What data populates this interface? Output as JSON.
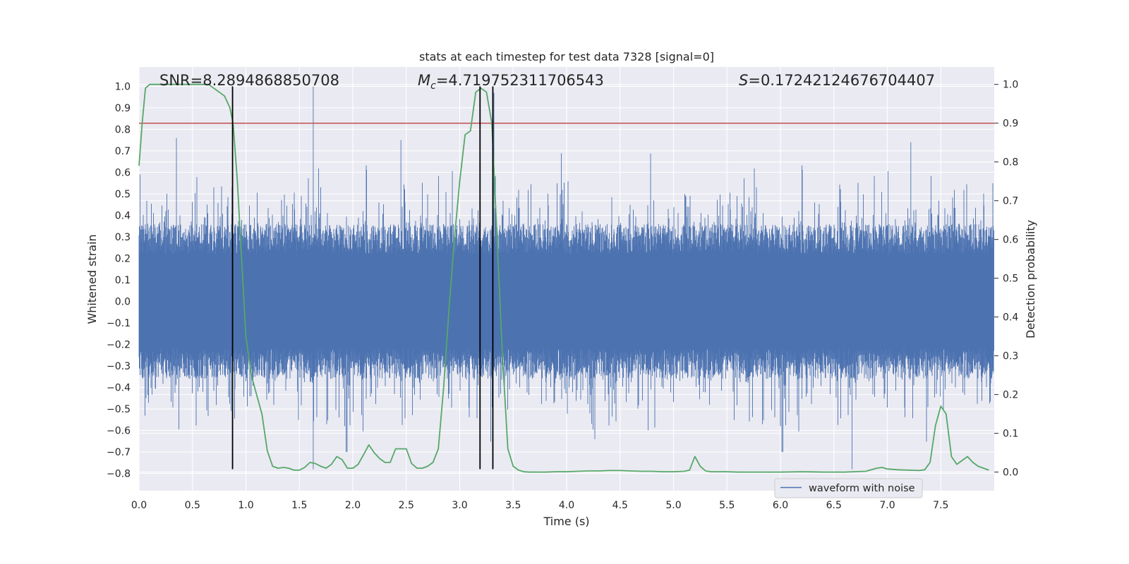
{
  "chart_data": {
    "type": "line",
    "title": "stats at each timestep for test data 7328 [signal=0]",
    "xlabel": "Time (s)",
    "ylabel": "Whitened strain",
    "y2label": "Detection probability",
    "xlim": [
      0.0,
      8.0
    ],
    "ylim": [
      -0.88,
      1.09
    ],
    "y2lim": [
      -0.048,
      1.045
    ],
    "xticks": [
      "0.0",
      "0.5",
      "1.0",
      "1.5",
      "2.0",
      "2.5",
      "3.0",
      "3.5",
      "4.0",
      "4.5",
      "5.0",
      "5.5",
      "6.0",
      "6.5",
      "7.0",
      "7.5"
    ],
    "yticks": [
      "1.0",
      "0.9",
      "0.8",
      "0.7",
      "0.6",
      "0.5",
      "0.4",
      "0.3",
      "0.2",
      "0.1",
      "0.0",
      "−0.1",
      "−0.2",
      "−0.3",
      "−0.4",
      "−0.5",
      "−0.6",
      "−0.7",
      "−0.8"
    ],
    "y2ticks": [
      "1.0",
      "0.9",
      "0.8",
      "0.7",
      "0.6",
      "0.5",
      "0.4",
      "0.3",
      "0.2",
      "0.1",
      "0.0"
    ],
    "grid": true,
    "legend_position": "lower-right",
    "annotations": {
      "snr": "SNR=8.2894868850708",
      "mc_symbol": "M",
      "mc_subscript": "c",
      "mc_value": "=4.719752311706543",
      "s_symbol": "S",
      "s_value": "=0.17242124676704407"
    },
    "threshold": {
      "axis": "y2",
      "value": 0.9,
      "color": "#c44e52"
    },
    "vlines": [
      {
        "x": 0.875,
        "y_from": -0.78,
        "y_to": 1.0
      },
      {
        "x": 3.19,
        "y_from": -0.78,
        "y_to": 1.0
      },
      {
        "x": 3.31,
        "y_from": -0.78,
        "y_to": 1.0
      }
    ],
    "series": [
      {
        "name": "waveform with noise",
        "axis": "y",
        "color": "#4c72b0",
        "style": "noise",
        "duration_s": 8.0,
        "envelope_std": 0.16,
        "peaks": [
          {
            "x": 0.35,
            "y": 0.76
          },
          {
            "x": 0.87,
            "y": 0.53
          },
          {
            "x": 1.63,
            "y": 1.0
          },
          {
            "x": 1.63,
            "y": -0.78
          },
          {
            "x": 2.45,
            "y": 0.75
          },
          {
            "x": 3.32,
            "y": 0.97
          },
          {
            "x": 6.67,
            "y": -0.78
          },
          {
            "x": 7.22,
            "y": 0.74
          }
        ]
      },
      {
        "axis": "y2",
        "color": "#55a868",
        "x": [
          0.0,
          0.03,
          0.06,
          0.1,
          0.15,
          0.2,
          0.3,
          0.4,
          0.5,
          0.6,
          0.65,
          0.7,
          0.75,
          0.8,
          0.85,
          0.88,
          0.92,
          0.96,
          1.0,
          1.05,
          1.1,
          1.15,
          1.2,
          1.25,
          1.3,
          1.35,
          1.4,
          1.45,
          1.5,
          1.55,
          1.6,
          1.65,
          1.7,
          1.75,
          1.8,
          1.85,
          1.9,
          1.95,
          2.0,
          2.05,
          2.1,
          2.15,
          2.2,
          2.25,
          2.3,
          2.35,
          2.4,
          2.45,
          2.5,
          2.55,
          2.6,
          2.65,
          2.7,
          2.75,
          2.8,
          2.85,
          2.9,
          2.95,
          3.0,
          3.05,
          3.1,
          3.15,
          3.2,
          3.25,
          3.3,
          3.35,
          3.4,
          3.45,
          3.5,
          3.55,
          3.6,
          3.65,
          3.7,
          3.8,
          3.9,
          4.0,
          4.1,
          4.2,
          4.3,
          4.4,
          4.5,
          4.6,
          4.7,
          4.8,
          4.9,
          5.0,
          5.1,
          5.15,
          5.2,
          5.25,
          5.3,
          5.35,
          5.4,
          5.5,
          5.6,
          5.8,
          6.0,
          6.2,
          6.4,
          6.6,
          6.8,
          6.9,
          6.95,
          7.0,
          7.1,
          7.2,
          7.3,
          7.35,
          7.4,
          7.45,
          7.5,
          7.55,
          7.6,
          7.65,
          7.7,
          7.75,
          7.8,
          7.85,
          7.9,
          7.95
        ],
        "values": [
          0.79,
          0.9,
          0.99,
          1.0,
          1.0,
          1.0,
          1.0,
          1.0,
          1.0,
          1.0,
          1.0,
          0.99,
          0.98,
          0.97,
          0.94,
          0.9,
          0.75,
          0.55,
          0.35,
          0.25,
          0.2,
          0.15,
          0.055,
          0.015,
          0.01,
          0.012,
          0.01,
          0.005,
          0.005,
          0.012,
          0.025,
          0.022,
          0.015,
          0.01,
          0.02,
          0.04,
          0.032,
          0.01,
          0.01,
          0.02,
          0.045,
          0.07,
          0.05,
          0.035,
          0.025,
          0.025,
          0.06,
          0.06,
          0.06,
          0.022,
          0.01,
          0.01,
          0.015,
          0.025,
          0.06,
          0.22,
          0.42,
          0.6,
          0.75,
          0.87,
          0.88,
          0.98,
          0.99,
          0.98,
          0.9,
          0.6,
          0.3,
          0.06,
          0.015,
          0.005,
          0.001,
          0.0,
          0.0,
          0.0,
          0.001,
          0.001,
          0.002,
          0.003,
          0.003,
          0.004,
          0.004,
          0.003,
          0.002,
          0.002,
          0.001,
          0.001,
          0.002,
          0.005,
          0.04,
          0.015,
          0.003,
          0.001,
          0.001,
          0.001,
          0.0,
          0.0,
          0.0,
          0.001,
          0.0,
          0.0,
          0.002,
          0.01,
          0.012,
          0.008,
          0.006,
          0.005,
          0.004,
          0.006,
          0.025,
          0.12,
          0.17,
          0.15,
          0.04,
          0.02,
          0.03,
          0.04,
          0.025,
          0.015,
          0.01,
          0.005
        ]
      }
    ]
  }
}
